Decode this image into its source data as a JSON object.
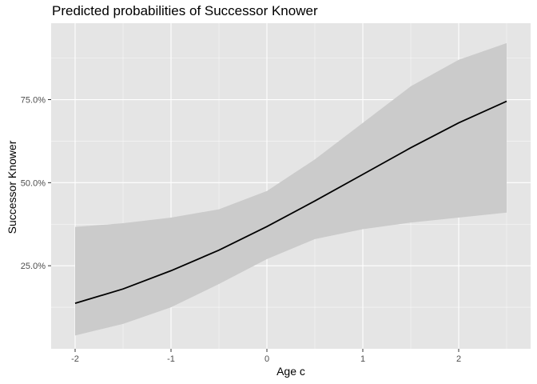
{
  "chart_data": {
    "type": "line",
    "title": "Predicted probabilities of Successor Knower",
    "xlabel": "Age c",
    "ylabel": "Successor Knower",
    "xlim": [
      -2.25,
      2.75
    ],
    "ylim": [
      0.0,
      0.98
    ],
    "x_ticks": [
      -2,
      -1,
      0,
      1,
      2
    ],
    "x_tick_labels": [
      "-2",
      "-1",
      "0",
      "1",
      "2"
    ],
    "y_ticks": [
      0.25,
      0.5,
      0.75
    ],
    "y_tick_labels": [
      "25.0%",
      "50.0%",
      "75.0%"
    ],
    "grid": true,
    "series": [
      {
        "x": [
          -2,
          -1.5,
          -1,
          -0.5,
          0,
          0.5,
          1,
          1.5,
          2,
          2.5
        ],
        "values": [
          0.137,
          0.18,
          0.235,
          0.297,
          0.368,
          0.445,
          0.525,
          0.605,
          0.68,
          0.745
        ],
        "ci_lower": [
          0.04,
          0.075,
          0.125,
          0.195,
          0.27,
          0.33,
          0.36,
          0.38,
          0.395,
          0.41
        ],
        "ci_upper": [
          0.367,
          0.378,
          0.395,
          0.42,
          0.475,
          0.57,
          0.68,
          0.79,
          0.87,
          0.92
        ]
      }
    ],
    "colors": {
      "panel": "#e5e5e5",
      "grid_major": "#ffffff",
      "ribbon": "#cbcbcb",
      "line": "#000000",
      "tick_text": "#4d4d4d",
      "tick_mark": "#333333"
    }
  }
}
